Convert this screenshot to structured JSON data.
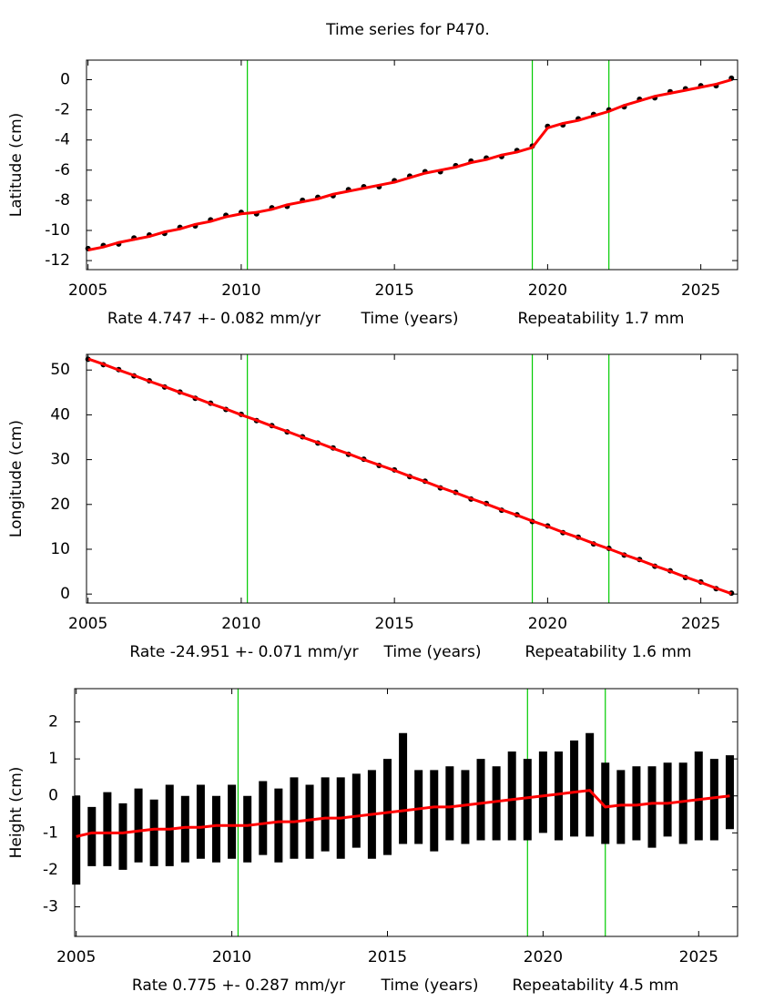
{
  "title": "Time series for P470.",
  "chart_data": [
    {
      "type": "timeseries",
      "ylabel": "Latitude (cm)",
      "rate_label": "Rate 4.747 +- 0.082 mm/yr",
      "xlabel": "Time (years)",
      "repeatability_label": "Repeatability 1.7 mm",
      "xlim": [
        2004.95,
        2026.2
      ],
      "ylim": [
        -12.6,
        1.3
      ],
      "xticks": [
        2005,
        2010,
        2015,
        2020,
        2025
      ],
      "yticks": [
        0,
        -2,
        -4,
        -6,
        -8,
        -10,
        -12
      ],
      "vlines": [
        2010.2,
        2019.5,
        2022.0
      ],
      "vline_color": "#00cc00",
      "x": [
        2005,
        2005.5,
        2006,
        2006.5,
        2007,
        2007.5,
        2008,
        2008.5,
        2009,
        2009.5,
        2010,
        2010.5,
        2011,
        2011.5,
        2012,
        2012.5,
        2013,
        2013.5,
        2014,
        2014.5,
        2015,
        2015.5,
        2016,
        2016.5,
        2017,
        2017.5,
        2018,
        2018.5,
        2019,
        2019.5,
        2020,
        2020.5,
        2021,
        2021.5,
        2022,
        2022.5,
        2023,
        2023.5,
        2024,
        2024.5,
        2025,
        2025.5,
        2026
      ],
      "series": [
        {
          "color": "#000000",
          "values": [
            -11.2,
            -11.0,
            -10.9,
            -10.5,
            -10.3,
            -10.2,
            -9.8,
            -9.7,
            -9.3,
            -9.0,
            -8.8,
            -8.9,
            -8.5,
            -8.4,
            -8.0,
            -7.8,
            -7.7,
            -7.3,
            -7.1,
            -7.1,
            -6.7,
            -6.4,
            -6.1,
            -6.1,
            -5.7,
            -5.4,
            -5.2,
            -5.1,
            -4.7,
            -4.4,
            -3.1,
            -3.0,
            -2.6,
            -2.3,
            -2.0,
            -1.8,
            -1.3,
            -1.2,
            -0.8,
            -0.6,
            -0.4,
            -0.4,
            0.1
          ]
        },
        {
          "color": "#ff0000",
          "values": [
            -11.3,
            -11.1,
            -10.8,
            -10.6,
            -10.4,
            -10.1,
            -9.9,
            -9.6,
            -9.4,
            -9.1,
            -8.9,
            -8.8,
            -8.6,
            -8.3,
            -8.1,
            -7.9,
            -7.6,
            -7.4,
            -7.2,
            -7.0,
            -6.8,
            -6.5,
            -6.2,
            -6.0,
            -5.8,
            -5.5,
            -5.3,
            -5.0,
            -4.8,
            -4.5,
            -3.2,
            -2.9,
            -2.7,
            -2.4,
            -2.1,
            -1.7,
            -1.4,
            -1.1,
            -0.9,
            -0.7,
            -0.5,
            -0.3,
            0.0
          ]
        }
      ]
    },
    {
      "type": "timeseries",
      "ylabel": "Longitude (cm)",
      "rate_label": "Rate -24.951 +- 0.071 mm/yr",
      "xlabel": "Time (years)",
      "repeatability_label": "Repeatability 1.6 mm",
      "xlim": [
        2004.95,
        2026.2
      ],
      "ylim": [
        -2,
        53.5
      ],
      "xticks": [
        2005,
        2010,
        2015,
        2020,
        2025
      ],
      "yticks": [
        0,
        10,
        20,
        30,
        40,
        50
      ],
      "vlines": [
        2010.2,
        2019.5,
        2022.0
      ],
      "vline_color": "#00cc00",
      "x": [
        2005,
        2005.5,
        2006,
        2006.5,
        2007,
        2007.5,
        2008,
        2008.5,
        2009,
        2009.5,
        2010,
        2010.5,
        2011,
        2011.5,
        2012,
        2012.5,
        2013,
        2013.5,
        2014,
        2014.5,
        2015,
        2015.5,
        2016,
        2016.5,
        2017,
        2017.5,
        2018,
        2018.5,
        2019,
        2019.5,
        2020,
        2020.5,
        2021,
        2021.5,
        2022,
        2022.5,
        2023,
        2023.5,
        2024,
        2024.5,
        2025,
        2025.5,
        2026
      ],
      "series": [
        {
          "color": "#000000",
          "values": [
            52.4,
            51.2,
            50.1,
            48.7,
            47.6,
            46.2,
            45.1,
            43.7,
            42.6,
            41.2,
            40.1,
            38.7,
            37.6,
            36.2,
            35.1,
            33.7,
            32.6,
            31.2,
            30.1,
            28.7,
            27.7,
            26.2,
            25.2,
            23.7,
            22.7,
            21.2,
            20.2,
            18.7,
            17.7,
            16.2,
            15.2,
            13.7,
            12.7,
            11.2,
            10.2,
            8.7,
            7.7,
            6.2,
            5.2,
            3.7,
            2.7,
            1.2,
            0.2
          ]
        },
        {
          "color": "#ff0000",
          "values": [
            52.5,
            51.3,
            50.0,
            48.8,
            47.5,
            46.3,
            45.0,
            43.8,
            42.5,
            41.3,
            40.0,
            38.8,
            37.5,
            36.3,
            35.0,
            33.8,
            32.5,
            31.3,
            30.0,
            28.8,
            27.6,
            26.3,
            25.1,
            23.8,
            22.6,
            21.3,
            20.1,
            18.8,
            17.6,
            16.3,
            15.1,
            13.8,
            12.6,
            11.3,
            10.1,
            8.8,
            7.6,
            6.3,
            5.1,
            3.8,
            2.6,
            1.3,
            0.1
          ]
        }
      ]
    },
    {
      "type": "timeseries",
      "ylabel": "Height (cm)",
      "rate_label": "Rate 0.775 +- 0.287 mm/yr",
      "xlabel": "Time (years)",
      "repeatability_label": "Repeatability 4.5 mm",
      "xlim": [
        2004.95,
        2026.25
      ],
      "ylim": [
        -3.8,
        2.9
      ],
      "xticks": [
        2005,
        2010,
        2015,
        2020,
        2025
      ],
      "yticks": [
        2,
        1,
        0,
        -1,
        -2,
        -3
      ],
      "vlines": [
        2010.2,
        2019.5,
        2022.0
      ],
      "vline_color": "#00cc00",
      "x": [
        2005,
        2005.5,
        2006,
        2006.5,
        2007,
        2007.5,
        2008,
        2008.5,
        2009,
        2009.5,
        2010,
        2010.5,
        2011,
        2011.5,
        2012,
        2012.5,
        2013,
        2013.5,
        2014,
        2014.5,
        2015,
        2015.5,
        2016,
        2016.5,
        2017,
        2017.5,
        2018,
        2018.5,
        2019,
        2019.5,
        2020,
        2020.5,
        2021,
        2021.5,
        2022,
        2022.5,
        2023,
        2023.5,
        2024,
        2024.5,
        2025,
        2025.5,
        2026
      ],
      "series": [
        {
          "color": "#000000",
          "values": [
            -1.2,
            -1.1,
            -0.9,
            -1.1,
            -0.8,
            -1.0,
            -0.8,
            -0.9,
            -0.7,
            -0.9,
            -0.7,
            -0.9,
            -0.6,
            -0.8,
            -0.6,
            -0.7,
            -0.5,
            -0.6,
            -0.4,
            -0.5,
            -0.3,
            0.2,
            -0.3,
            -0.4,
            -0.2,
            -0.3,
            -0.1,
            -0.2,
            0.0,
            -0.1,
            0.1,
            0.0,
            0.2,
            0.3,
            -0.2,
            -0.3,
            -0.2,
            -0.3,
            -0.1,
            -0.2,
            0.0,
            -0.1,
            0.1
          ],
          "errors": [
            1.2,
            0.8,
            1.0,
            0.9,
            1.0,
            0.9,
            1.1,
            0.9,
            1.0,
            0.9,
            1.0,
            0.9,
            1.0,
            1.0,
            1.1,
            1.0,
            1.0,
            1.1,
            1.0,
            1.2,
            1.3,
            1.5,
            1.0,
            1.1,
            1.0,
            1.0,
            1.1,
            1.0,
            1.2,
            1.1,
            1.1,
            1.2,
            1.3,
            1.4,
            1.1,
            1.0,
            1.0,
            1.1,
            1.0,
            1.1,
            1.2,
            1.1,
            1.0
          ]
        },
        {
          "color": "#ff0000",
          "values": [
            -1.1,
            -1.0,
            -1.0,
            -1.0,
            -0.95,
            -0.9,
            -0.9,
            -0.85,
            -0.85,
            -0.8,
            -0.8,
            -0.8,
            -0.75,
            -0.7,
            -0.7,
            -0.65,
            -0.6,
            -0.6,
            -0.55,
            -0.5,
            -0.45,
            -0.4,
            -0.35,
            -0.3,
            -0.3,
            -0.25,
            -0.2,
            -0.15,
            -0.1,
            -0.05,
            0.0,
            0.05,
            0.1,
            0.15,
            -0.3,
            -0.25,
            -0.25,
            -0.2,
            -0.2,
            -0.15,
            -0.1,
            -0.05,
            0.0
          ]
        }
      ]
    }
  ]
}
